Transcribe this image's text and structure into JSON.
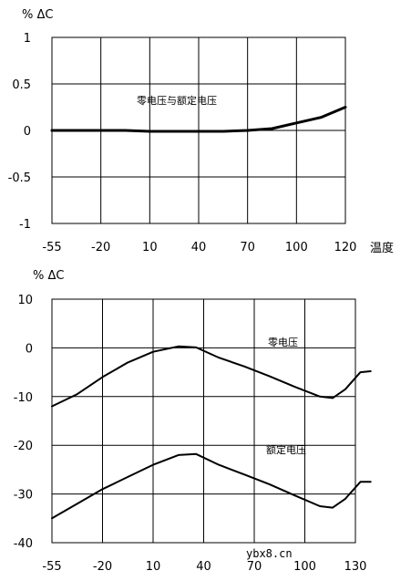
{
  "chart_data": [
    {
      "type": "line",
      "ylabel": "% ΔC",
      "xlabel": "温度",
      "x_tick_labels": [
        "-55",
        "-20",
        "10",
        "40",
        "70",
        "100",
        "120"
      ],
      "y_tick_labels": [
        "1",
        "0.5",
        "0",
        "-0.5",
        "-1"
      ],
      "ylim": [
        -1,
        1
      ],
      "grid": true,
      "annotations": [
        {
          "text": "零电压与额定电压",
          "x": 4.8,
          "y": 0.35
        }
      ],
      "series": [
        {
          "x": [
            0,
            0.5,
            1,
            1.5,
            2,
            2.5,
            3,
            3.5,
            4,
            4.5,
            5,
            5.5,
            6
          ],
          "values": [
            0,
            0,
            0,
            0,
            -0.01,
            -0.01,
            -0.01,
            -0.01,
            0,
            0.02,
            0.08,
            0.14,
            0.25
          ]
        }
      ]
    },
    {
      "type": "line",
      "ylabel": "% ΔC",
      "x_tick_labels": [
        "-55",
        "-20",
        "10",
        "40",
        "70",
        "100",
        "130"
      ],
      "y_tick_labels": [
        "10",
        "0",
        "-10",
        "-20",
        "-30",
        "-40"
      ],
      "ylim": [
        -40,
        10
      ],
      "grid": true,
      "annotations": [
        {
          "text": "零电压",
          "x": 4.5,
          "y": 1
        },
        {
          "text": "额定电压",
          "x": 4.5,
          "y": -21
        }
      ],
      "series": [
        {
          "name": "零电压",
          "x": [
            0,
            0.5,
            1,
            1.5,
            2,
            2.5,
            2.85,
            3.3,
            3.8,
            4.3,
            4.8,
            5.3,
            5.55,
            5.8,
            6.1,
            6.3
          ],
          "values": [
            -12,
            -9.5,
            -6,
            -3,
            -0.8,
            0.3,
            0.1,
            -2,
            -3.8,
            -5.8,
            -8,
            -10,
            -10.3,
            -8.5,
            -5,
            -4.8
          ]
        },
        {
          "name": "额定电压",
          "x": [
            0,
            0.5,
            1,
            1.5,
            2,
            2.5,
            2.85,
            3.3,
            3.8,
            4.3,
            4.8,
            5.3,
            5.55,
            5.8,
            6.1,
            6.3
          ],
          "values": [
            -35,
            -32,
            -29,
            -26.5,
            -24,
            -22,
            -21.8,
            -24,
            -26,
            -28,
            -30.3,
            -32.5,
            -32.8,
            -31,
            -27.5,
            -27.5
          ]
        }
      ]
    }
  ],
  "watermark": "ybx8.cn"
}
